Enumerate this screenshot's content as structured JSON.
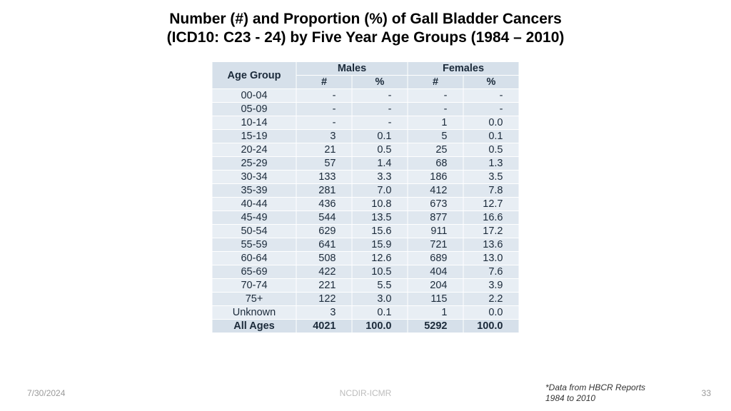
{
  "title": {
    "line1": "Number (#) and Proportion (%) of Gall Bladder Cancers",
    "line2": "(ICD10: C23 - 24) by Five Year Age Groups (1984 – 2010)",
    "fontsize": 21,
    "color": "#000000"
  },
  "table": {
    "type": "table",
    "header": {
      "age_label": "Age Group",
      "males_label": "Males",
      "females_label": "Females",
      "count_label": "#",
      "pct_label": "%",
      "bg_color": "#d6e0ea",
      "text_color": "#1b2a3a"
    },
    "col_widths": {
      "age": 118,
      "n": 78,
      "p": 78
    },
    "row_colors": {
      "odd": "#e8eef4",
      "even": "#dfe7ef",
      "total": "#d6e0ea"
    },
    "border_color": "#ffffff",
    "cell_fontsize": 14.5,
    "rows": [
      {
        "age": "00-04",
        "m_n": "-",
        "m_p": "-",
        "f_n": "-",
        "f_p": "-"
      },
      {
        "age": "05-09",
        "m_n": "-",
        "m_p": "-",
        "f_n": "-",
        "f_p": "-"
      },
      {
        "age": "10-14",
        "m_n": "-",
        "m_p": "-",
        "f_n": "1",
        "f_p": "0.0"
      },
      {
        "age": "15-19",
        "m_n": "3",
        "m_p": "0.1",
        "f_n": "5",
        "f_p": "0.1"
      },
      {
        "age": "20-24",
        "m_n": "21",
        "m_p": "0.5",
        "f_n": "25",
        "f_p": "0.5"
      },
      {
        "age": "25-29",
        "m_n": "57",
        "m_p": "1.4",
        "f_n": "68",
        "f_p": "1.3"
      },
      {
        "age": "30-34",
        "m_n": "133",
        "m_p": "3.3",
        "f_n": "186",
        "f_p": "3.5"
      },
      {
        "age": "35-39",
        "m_n": "281",
        "m_p": "7.0",
        "f_n": "412",
        "f_p": "7.8"
      },
      {
        "age": "40-44",
        "m_n": "436",
        "m_p": "10.8",
        "f_n": "673",
        "f_p": "12.7"
      },
      {
        "age": "45-49",
        "m_n": "544",
        "m_p": "13.5",
        "f_n": "877",
        "f_p": "16.6"
      },
      {
        "age": "50-54",
        "m_n": "629",
        "m_p": "15.6",
        "f_n": "911",
        "f_p": "17.2"
      },
      {
        "age": "55-59",
        "m_n": "641",
        "m_p": "15.9",
        "f_n": "721",
        "f_p": "13.6"
      },
      {
        "age": "60-64",
        "m_n": "508",
        "m_p": "12.6",
        "f_n": "689",
        "f_p": "13.0"
      },
      {
        "age": "65-69",
        "m_n": "422",
        "m_p": "10.5",
        "f_n": "404",
        "f_p": "7.6"
      },
      {
        "age": "70-74",
        "m_n": "221",
        "m_p": "5.5",
        "f_n": "204",
        "f_p": "3.9"
      },
      {
        "age": "75+",
        "m_n": "122",
        "m_p": "3.0",
        "f_n": "115",
        "f_p": "2.2"
      },
      {
        "age": "Unknown",
        "m_n": "3",
        "m_p": "0.1",
        "f_n": "1",
        "f_p": "0.0"
      }
    ],
    "total": {
      "age": "All Ages",
      "m_n": "4021",
      "m_p": "100.0",
      "f_n": "5292",
      "f_p": "100.0"
    }
  },
  "footer": {
    "date": "7/30/2024",
    "center": "NCDIR-ICMR",
    "note": "*Data from HBCR Reports 1984 to 2010",
    "page": "33",
    "text_color": "#9a9a9a",
    "fontsize": 12
  }
}
